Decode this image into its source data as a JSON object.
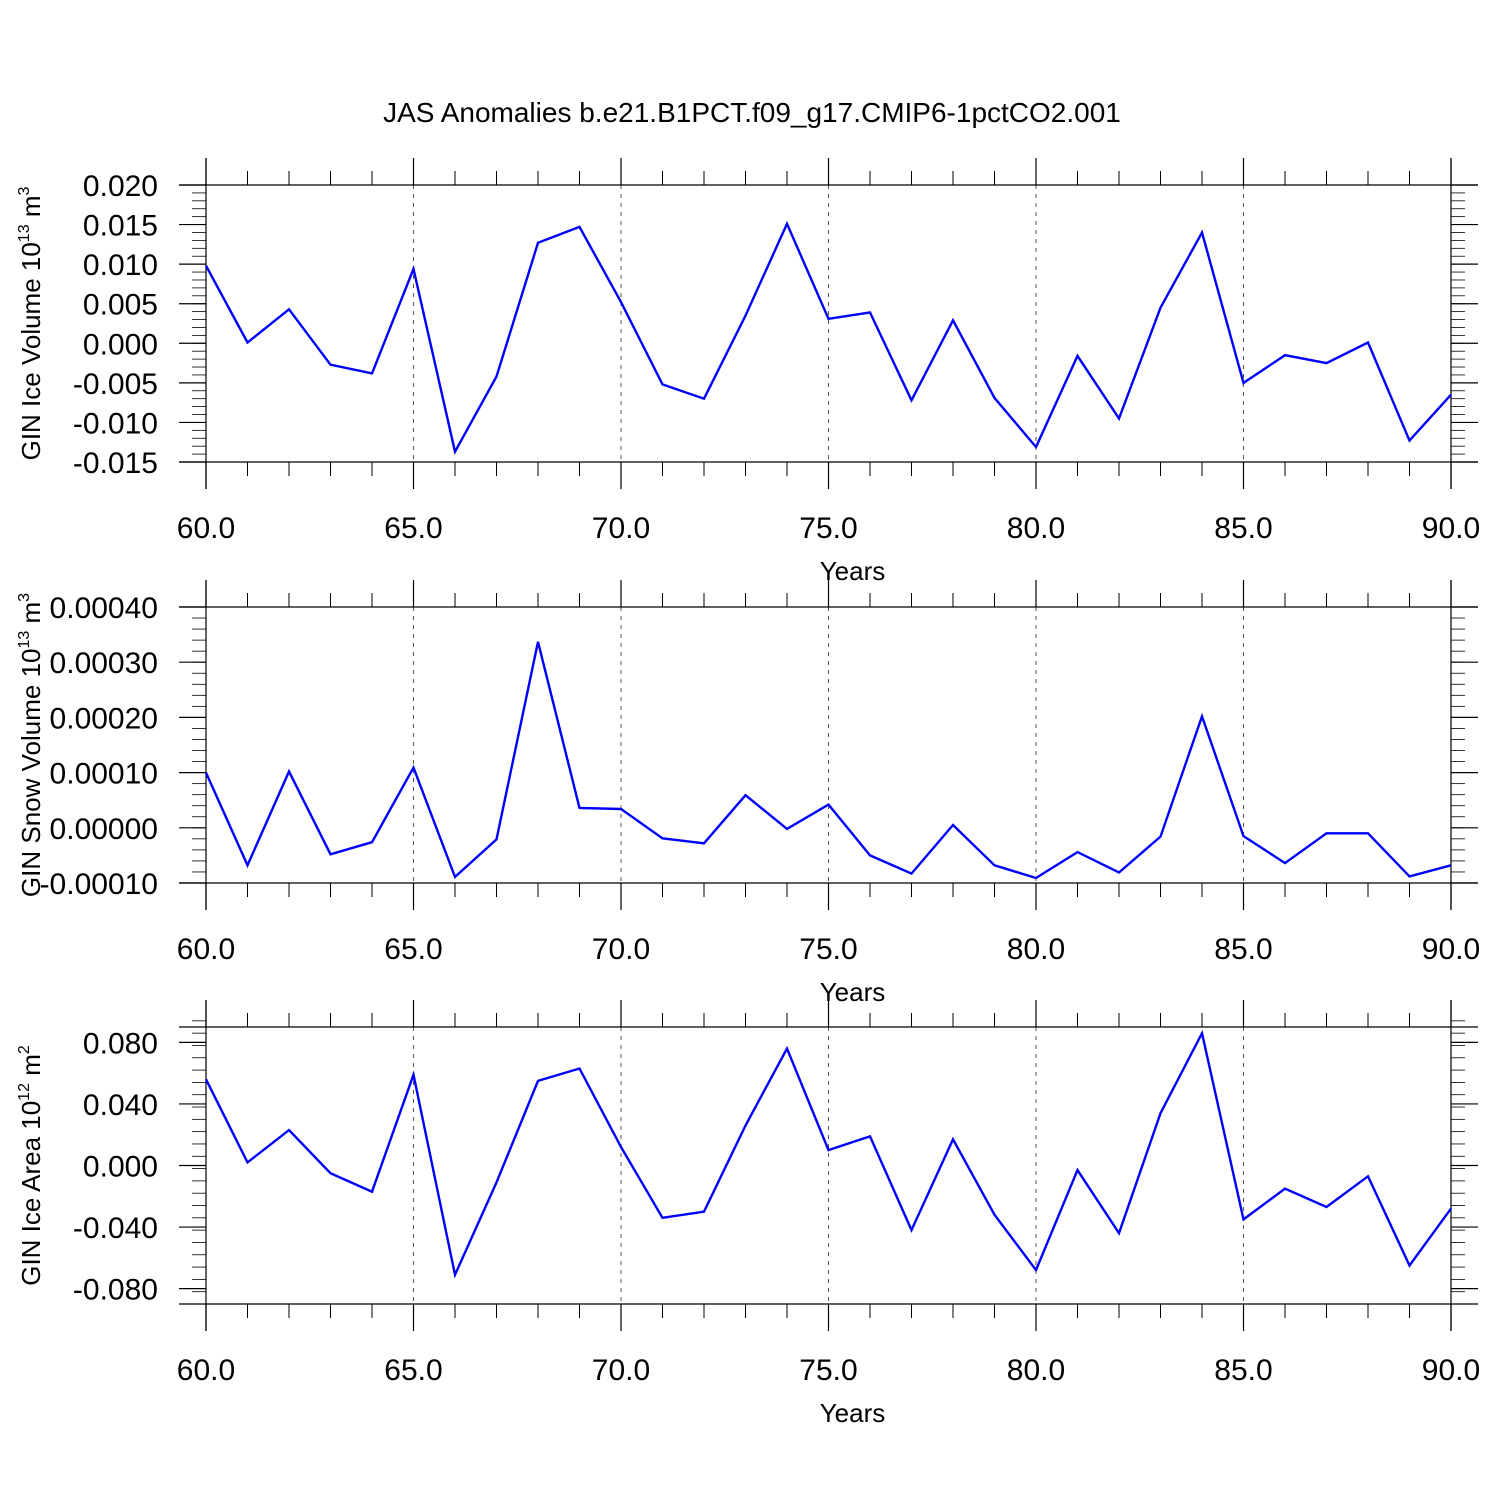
{
  "title": "JAS Anomalies b.e21.B1PCT.f09_g17.CMIP6-1pctCO2.001",
  "colors": {
    "line": "#0000ff",
    "axis": "#000000",
    "grid": "#555555"
  },
  "chart_data": [
    {
      "type": "line",
      "ylabel": {
        "base": "GIN Ice Volume 10",
        "sup": "13",
        "unit": " m",
        "unit_sup": "3"
      },
      "xlabel": "Years",
      "xlim": [
        60,
        90
      ],
      "ylim": [
        -0.015,
        0.02
      ],
      "x_ticks": [
        60,
        65,
        70,
        75,
        80,
        85,
        90
      ],
      "x_tick_labels": [
        "60.0",
        "65.0",
        "70.0",
        "75.0",
        "80.0",
        "85.0",
        "90.0"
      ],
      "y_ticks": [
        -0.015,
        -0.01,
        -0.005,
        0.0,
        0.005,
        0.01,
        0.015,
        0.02
      ],
      "y_tick_labels": [
        "-0.015",
        "-0.010",
        "-0.005",
        "0.000",
        "0.005",
        "0.010",
        "0.015",
        "0.020"
      ],
      "grid": "vertical-dashed",
      "series": [
        {
          "x": [
            60,
            61,
            62,
            63,
            64,
            65,
            66,
            67,
            68,
            69,
            70,
            71,
            72,
            73,
            74,
            75,
            76,
            77,
            78,
            79,
            80,
            81,
            82,
            83,
            84,
            85,
            86,
            87,
            88,
            89,
            90
          ],
          "values": [
            0.0098,
            0.0001,
            0.0043,
            -0.0027,
            -0.0038,
            0.0094,
            -0.0137,
            -0.0042,
            0.0127,
            0.0147,
            0.0052,
            -0.0052,
            -0.007,
            0.0035,
            0.0151,
            0.0031,
            0.0039,
            -0.0072,
            0.0029,
            -0.0069,
            -0.0131,
            -0.0016,
            -0.0095,
            0.0045,
            0.014,
            -0.005,
            -0.0015,
            -0.0025,
            0.0001,
            -0.0123,
            -0.0065
          ]
        }
      ]
    },
    {
      "type": "line",
      "ylabel": {
        "base": "GIN Snow Volume 10",
        "sup": "13",
        "unit": " m",
        "unit_sup": "3"
      },
      "xlabel": "Years",
      "xlim": [
        60,
        90
      ],
      "ylim": [
        -0.0001,
        0.0004
      ],
      "x_ticks": [
        60,
        65,
        70,
        75,
        80,
        85,
        90
      ],
      "x_tick_labels": [
        "60.0",
        "65.0",
        "70.0",
        "75.0",
        "80.0",
        "85.0",
        "90.0"
      ],
      "y_ticks": [
        -0.0001,
        0.0,
        0.0001,
        0.0002,
        0.0003,
        0.0004
      ],
      "y_tick_labels": [
        "-0.00010",
        "0.00000",
        "0.00010",
        "0.00020",
        "0.00030",
        "0.00040"
      ],
      "grid": "vertical-dashed",
      "series": [
        {
          "x": [
            60,
            61,
            62,
            63,
            64,
            65,
            66,
            67,
            68,
            69,
            70,
            71,
            72,
            73,
            74,
            75,
            76,
            77,
            78,
            79,
            80,
            81,
            82,
            83,
            84,
            85,
            86,
            87,
            88,
            89,
            90
          ],
          "values": [
            0.0001,
            -6.8e-05,
            0.000102,
            -4.8e-05,
            -2.6e-05,
            0.000109,
            -8.9e-05,
            -2.1e-05,
            0.000337,
            3.6e-05,
            3.4e-05,
            -1.9e-05,
            -2.8e-05,
            5.9e-05,
            -2e-06,
            4.2e-05,
            -5e-05,
            -8.3e-05,
            5e-06,
            -6.8e-05,
            -9.1e-05,
            -4.4e-05,
            -8.1e-05,
            -1.6e-05,
            0.000202,
            -1.5e-05,
            -6.4e-05,
            -1e-05,
            -1e-05,
            -8.8e-05,
            -6.8e-05
          ]
        }
      ]
    },
    {
      "type": "line",
      "ylabel": {
        "base": "GIN Ice Area 10",
        "sup": "12",
        "unit": " m",
        "unit_sup": "2"
      },
      "xlabel": "Years",
      "xlim": [
        60,
        90
      ],
      "ylim": [
        -0.09,
        0.09
      ],
      "x_ticks": [
        60,
        65,
        70,
        75,
        80,
        85,
        90
      ],
      "x_tick_labels": [
        "60.0",
        "65.0",
        "70.0",
        "75.0",
        "80.0",
        "85.0",
        "90.0"
      ],
      "y_ticks": [
        -0.08,
        -0.04,
        0.0,
        0.04,
        0.08
      ],
      "y_tick_labels": [
        "-0.080",
        "-0.040",
        "0.000",
        "0.040",
        "0.080"
      ],
      "grid": "vertical-dashed",
      "series": [
        {
          "x": [
            60,
            61,
            62,
            63,
            64,
            65,
            66,
            67,
            68,
            69,
            70,
            71,
            72,
            73,
            74,
            75,
            76,
            77,
            78,
            79,
            80,
            81,
            82,
            83,
            84,
            85,
            86,
            87,
            88,
            89,
            90
          ],
          "values": [
            0.056,
            0.002,
            0.023,
            -0.005,
            -0.017,
            0.059,
            -0.071,
            -0.011,
            0.055,
            0.063,
            0.012,
            -0.034,
            -0.03,
            0.026,
            0.076,
            0.01,
            0.019,
            -0.042,
            0.017,
            -0.032,
            -0.068,
            -0.003,
            -0.044,
            0.034,
            0.086,
            -0.035,
            -0.015,
            -0.027,
            -0.007,
            -0.065,
            -0.028
          ]
        }
      ]
    }
  ]
}
